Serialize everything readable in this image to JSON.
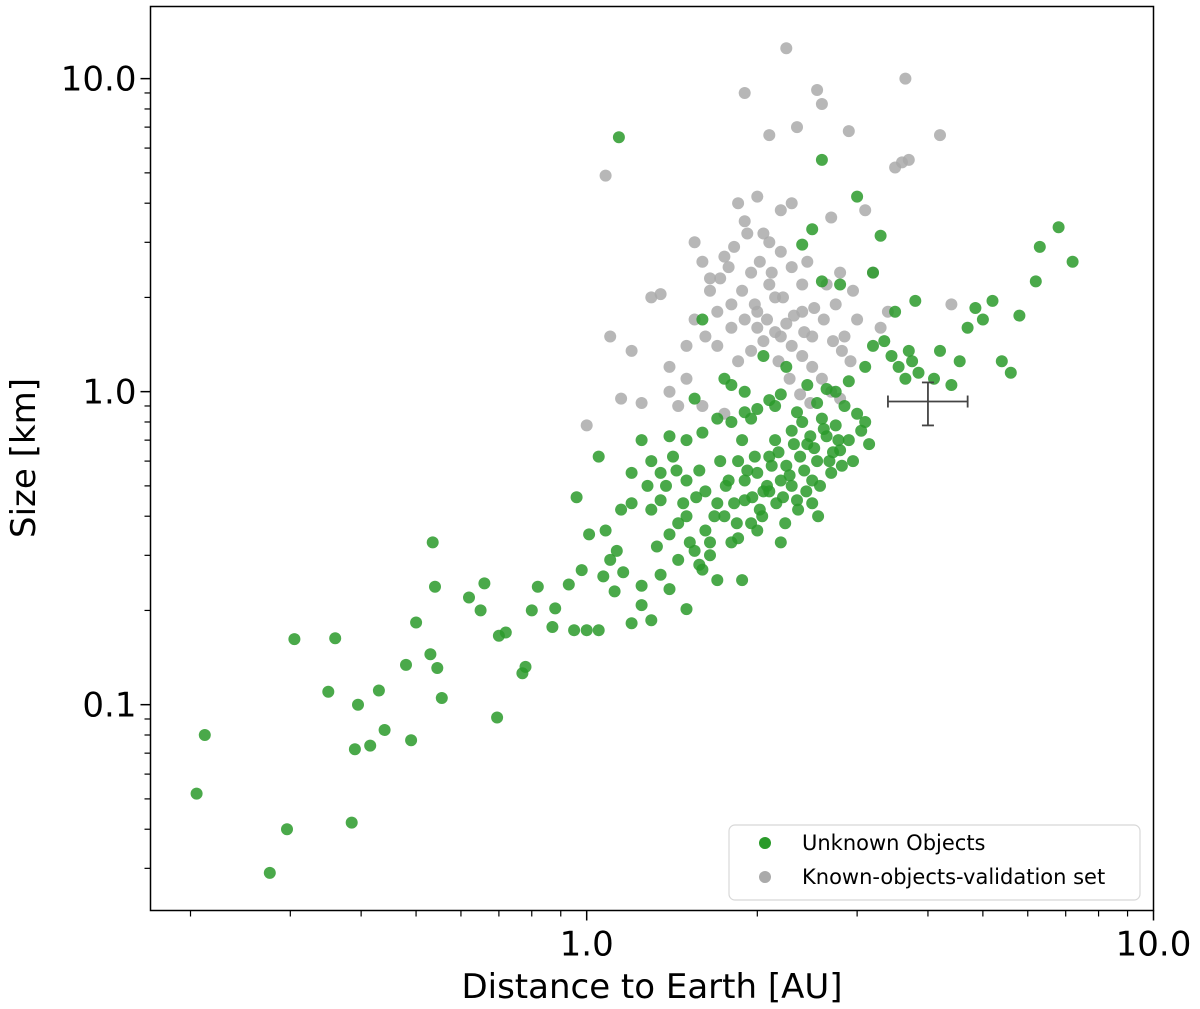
{
  "chart_data": {
    "type": "scatter",
    "xlabel": "Distance to Earth [AU]",
    "ylabel": "Size [km]",
    "xscale": "log",
    "yscale": "log",
    "xlim": [
      0.17,
      10.0
    ],
    "ylim": [
      0.022,
      17.0
    ],
    "xticks": [
      {
        "value": 1.0,
        "label": "1.0"
      },
      {
        "value": 10.0,
        "label": "10.0"
      }
    ],
    "yticks": [
      {
        "value": 0.1,
        "label": "0.1"
      },
      {
        "value": 1.0,
        "label": "1.0"
      },
      {
        "value": 10.0,
        "label": "10.0"
      }
    ],
    "grid": false,
    "legend_position": "bottom-right",
    "series": [
      {
        "name": "Unknown Objects",
        "color": "#2a9a2a",
        "points": [
          [
            0.205,
            0.052
          ],
          [
            0.212,
            0.08
          ],
          [
            0.276,
            0.029
          ],
          [
            0.296,
            0.04
          ],
          [
            0.305,
            0.162
          ],
          [
            0.35,
            0.11
          ],
          [
            0.36,
            0.163
          ],
          [
            0.385,
            0.042
          ],
          [
            0.39,
            0.072
          ],
          [
            0.395,
            0.1
          ],
          [
            0.415,
            0.074
          ],
          [
            0.43,
            0.111
          ],
          [
            0.44,
            0.083
          ],
          [
            0.48,
            0.134
          ],
          [
            0.49,
            0.077
          ],
          [
            0.5,
            0.183
          ],
          [
            0.53,
            0.145
          ],
          [
            0.535,
            0.33
          ],
          [
            0.54,
            0.238
          ],
          [
            0.545,
            0.131
          ],
          [
            0.555,
            0.105
          ],
          [
            0.62,
            0.22
          ],
          [
            0.65,
            0.2
          ],
          [
            0.66,
            0.244
          ],
          [
            0.695,
            0.091
          ],
          [
            0.7,
            0.166
          ],
          [
            0.72,
            0.17
          ],
          [
            0.77,
            0.126
          ],
          [
            0.78,
            0.132
          ],
          [
            0.8,
            0.2
          ],
          [
            0.82,
            0.238
          ],
          [
            0.87,
            0.177
          ],
          [
            0.88,
            0.203
          ],
          [
            0.93,
            0.242
          ],
          [
            0.95,
            0.173
          ],
          [
            0.96,
            0.46
          ],
          [
            0.98,
            0.269
          ],
          [
            1.0,
            0.173
          ],
          [
            1.01,
            0.35
          ],
          [
            1.05,
            0.173
          ],
          [
            1.07,
            0.257
          ],
          [
            1.1,
            0.29
          ],
          [
            1.13,
            0.31
          ],
          [
            1.16,
            0.265
          ],
          [
            1.2,
            0.182
          ],
          [
            1.25,
            0.208
          ],
          [
            1.3,
            0.186
          ],
          [
            1.4,
            0.234
          ],
          [
            1.5,
            0.202
          ],
          [
            1.05,
            0.62
          ],
          [
            1.08,
            0.36
          ],
          [
            1.15,
            0.42
          ],
          [
            1.2,
            0.55
          ],
          [
            1.25,
            0.7
          ],
          [
            1.28,
            0.5
          ],
          [
            1.3,
            0.6
          ],
          [
            1.35,
            0.45
          ],
          [
            1.4,
            0.35
          ],
          [
            1.45,
            0.38
          ],
          [
            1.5,
            0.52
          ],
          [
            1.55,
            0.31
          ],
          [
            1.6,
            0.27
          ],
          [
            1.65,
            0.3
          ],
          [
            1.7,
            0.25
          ],
          [
            1.75,
            0.4
          ],
          [
            1.8,
            0.33
          ],
          [
            1.85,
            0.6
          ],
          [
            1.9,
            0.45
          ],
          [
            1.95,
            0.38
          ],
          [
            2.0,
            0.55
          ],
          [
            2.05,
            0.48
          ],
          [
            2.1,
            0.62
          ],
          [
            2.15,
            0.7
          ],
          [
            2.2,
            0.52
          ],
          [
            2.25,
            0.58
          ],
          [
            2.3,
            0.75
          ],
          [
            2.35,
            0.45
          ],
          [
            2.4,
            0.8
          ],
          [
            2.45,
            0.68
          ],
          [
            2.5,
            0.52
          ],
          [
            2.55,
            0.6
          ],
          [
            2.6,
            0.82
          ],
          [
            2.65,
            0.72
          ],
          [
            2.7,
            0.55
          ],
          [
            2.75,
            0.78
          ],
          [
            2.8,
            0.65
          ],
          [
            2.85,
            0.9
          ],
          [
            2.9,
            0.7
          ],
          [
            2.95,
            0.6
          ],
          [
            3.0,
            0.85
          ],
          [
            3.05,
            0.75
          ],
          [
            3.1,
            0.8
          ],
          [
            3.15,
            0.68
          ],
          [
            1.35,
            0.55
          ],
          [
            1.42,
            0.62
          ],
          [
            1.48,
            0.44
          ],
          [
            1.52,
            0.33
          ],
          [
            1.58,
            0.56
          ],
          [
            1.62,
            0.48
          ],
          [
            1.68,
            0.4
          ],
          [
            1.72,
            0.6
          ],
          [
            1.78,
            0.52
          ],
          [
            1.82,
            0.44
          ],
          [
            1.88,
            0.7
          ],
          [
            1.92,
            0.56
          ],
          [
            1.98,
            0.62
          ],
          [
            2.02,
            0.42
          ],
          [
            2.08,
            0.5
          ],
          [
            2.12,
            0.58
          ],
          [
            2.18,
            0.64
          ],
          [
            2.22,
            0.46
          ],
          [
            2.28,
            0.54
          ],
          [
            2.32,
            0.68
          ],
          [
            2.38,
            0.62
          ],
          [
            2.42,
            0.56
          ],
          [
            2.48,
            0.72
          ],
          [
            2.52,
            0.66
          ],
          [
            2.58,
            0.5
          ],
          [
            2.62,
            0.76
          ],
          [
            2.68,
            0.6
          ],
          [
            2.72,
            0.64
          ],
          [
            2.78,
            0.7
          ],
          [
            2.82,
            0.58
          ],
          [
            1.3,
            0.42
          ],
          [
            1.38,
            0.5
          ],
          [
            1.44,
            0.56
          ],
          [
            1.5,
            0.4
          ],
          [
            1.56,
            0.46
          ],
          [
            1.62,
            0.36
          ],
          [
            1.7,
            0.44
          ],
          [
            1.76,
            0.5
          ],
          [
            1.84,
            0.38
          ],
          [
            1.9,
            0.52
          ],
          [
            1.96,
            0.46
          ],
          [
            2.04,
            0.4
          ],
          [
            2.1,
            0.48
          ],
          [
            2.16,
            0.44
          ],
          [
            2.24,
            0.38
          ],
          [
            2.3,
            0.5
          ],
          [
            2.36,
            0.42
          ],
          [
            2.44,
            0.48
          ],
          [
            2.5,
            0.44
          ],
          [
            2.56,
            0.4
          ],
          [
            1.4,
            0.72
          ],
          [
            1.5,
            0.7
          ],
          [
            1.6,
            0.74
          ],
          [
            1.7,
            0.82
          ],
          [
            1.8,
            0.8
          ],
          [
            1.9,
            0.86
          ],
          [
            2.0,
            0.88
          ],
          [
            2.1,
            0.94
          ],
          [
            2.2,
            0.98
          ],
          [
            1.55,
            0.95
          ],
          [
            1.75,
            1.1
          ],
          [
            1.9,
            1.0
          ],
          [
            2.05,
            1.3
          ],
          [
            2.25,
            1.2
          ],
          [
            2.45,
            1.05
          ],
          [
            2.65,
            1.02
          ],
          [
            2.9,
            1.08
          ],
          [
            3.1,
            1.2
          ],
          [
            3.2,
            1.4
          ],
          [
            3.35,
            1.45
          ],
          [
            3.45,
            1.3
          ],
          [
            3.55,
            1.2
          ],
          [
            3.65,
            1.1
          ],
          [
            3.7,
            1.35
          ],
          [
            3.75,
            1.25
          ],
          [
            3.85,
            1.15
          ],
          [
            4.1,
            1.1
          ],
          [
            4.2,
            1.35
          ],
          [
            4.4,
            1.05
          ],
          [
            4.55,
            1.25
          ],
          [
            4.7,
            1.6
          ],
          [
            4.85,
            1.85
          ],
          [
            5.0,
            1.7
          ],
          [
            5.2,
            1.95
          ],
          [
            5.4,
            1.25
          ],
          [
            5.6,
            1.15
          ],
          [
            5.8,
            1.75
          ],
          [
            6.2,
            2.25
          ],
          [
            6.3,
            2.9
          ],
          [
            6.8,
            3.35
          ],
          [
            7.2,
            2.6
          ],
          [
            3.5,
            1.8
          ],
          [
            3.8,
            1.95
          ],
          [
            3.3,
            3.15
          ],
          [
            3.2,
            2.4
          ],
          [
            3.0,
            4.2
          ],
          [
            2.8,
            2.2
          ],
          [
            2.6,
            2.25
          ],
          [
            2.6,
            5.5
          ],
          [
            2.5,
            3.3
          ],
          [
            2.4,
            2.95
          ],
          [
            1.6,
            1.7
          ],
          [
            1.8,
            1.05
          ],
          [
            1.95,
            0.82
          ],
          [
            2.15,
            0.9
          ],
          [
            2.35,
            0.86
          ],
          [
            2.55,
            0.92
          ],
          [
            1.14,
            6.5
          ],
          [
            2.75,
            1.0
          ],
          [
            1.2,
            0.44
          ],
          [
            1.33,
            0.32
          ],
          [
            1.45,
            0.29
          ],
          [
            1.65,
            0.33
          ],
          [
            1.85,
            0.34
          ],
          [
            2.0,
            0.36
          ],
          [
            2.2,
            0.33
          ],
          [
            1.12,
            0.23
          ],
          [
            1.25,
            0.24
          ],
          [
            1.35,
            0.26
          ],
          [
            1.58,
            0.28
          ],
          [
            1.88,
            0.25
          ]
        ]
      },
      {
        "name": "Known-objects-validation set",
        "color": "#aaaaaa",
        "points": [
          [
            1.0,
            0.78
          ],
          [
            1.08,
            4.9
          ],
          [
            1.1,
            1.5
          ],
          [
            1.15,
            0.95
          ],
          [
            1.2,
            1.35
          ],
          [
            1.25,
            0.92
          ],
          [
            1.3,
            2.0
          ],
          [
            1.35,
            2.05
          ],
          [
            1.4,
            1.2
          ],
          [
            1.45,
            0.9
          ],
          [
            1.5,
            1.4
          ],
          [
            1.55,
            3.0
          ],
          [
            1.6,
            2.6
          ],
          [
            1.65,
            2.1
          ],
          [
            1.7,
            1.8
          ],
          [
            1.75,
            2.7
          ],
          [
            1.8,
            1.9
          ],
          [
            1.85,
            4.0
          ],
          [
            1.9,
            3.5
          ],
          [
            1.95,
            2.4
          ],
          [
            2.0,
            1.6
          ],
          [
            2.05,
            3.2
          ],
          [
            2.1,
            6.6
          ],
          [
            2.15,
            2.0
          ],
          [
            2.2,
            3.8
          ],
          [
            2.25,
            12.5
          ],
          [
            2.3,
            4.0
          ],
          [
            2.35,
            7.0
          ],
          [
            2.4,
            1.8
          ],
          [
            2.45,
            2.6
          ],
          [
            2.5,
            1.5
          ],
          [
            2.55,
            9.2
          ],
          [
            2.6,
            8.3
          ],
          [
            2.65,
            2.2
          ],
          [
            2.7,
            3.6
          ],
          [
            2.75,
            1.9
          ],
          [
            2.8,
            2.4
          ],
          [
            2.85,
            1.5
          ],
          [
            2.9,
            6.8
          ],
          [
            2.95,
            2.1
          ],
          [
            3.0,
            1.7
          ],
          [
            3.1,
            3.8
          ],
          [
            3.2,
            2.4
          ],
          [
            3.3,
            1.6
          ],
          [
            3.4,
            1.8
          ],
          [
            3.5,
            5.2
          ],
          [
            3.6,
            5.4
          ],
          [
            3.65,
            10.0
          ],
          [
            3.7,
            5.5
          ],
          [
            4.2,
            6.6
          ],
          [
            4.4,
            1.9
          ],
          [
            1.9,
            9.0
          ],
          [
            2.0,
            4.2
          ],
          [
            2.1,
            3.0
          ],
          [
            2.2,
            2.8
          ],
          [
            2.3,
            2.5
          ],
          [
            2.4,
            2.2
          ],
          [
            1.7,
            1.4
          ],
          [
            1.8,
            1.6
          ],
          [
            1.9,
            1.7
          ],
          [
            2.0,
            1.8
          ],
          [
            2.1,
            2.2
          ],
          [
            2.2,
            1.5
          ],
          [
            2.3,
            1.4
          ],
          [
            2.4,
            1.3
          ],
          [
            2.5,
            1.2
          ],
          [
            2.6,
            1.1
          ],
          [
            2.7,
            1.0
          ],
          [
            2.8,
            0.95
          ],
          [
            1.6,
            0.9
          ],
          [
            1.75,
            0.85
          ],
          [
            1.85,
            1.25
          ],
          [
            1.95,
            1.35
          ],
          [
            2.05,
            1.45
          ],
          [
            2.15,
            1.55
          ],
          [
            2.25,
            1.65
          ],
          [
            1.4,
            1.0
          ],
          [
            1.5,
            1.1
          ],
          [
            1.62,
            1.5
          ],
          [
            1.72,
            2.3
          ],
          [
            1.82,
            2.9
          ],
          [
            1.92,
            3.2
          ],
          [
            2.02,
            2.6
          ],
          [
            2.12,
            2.4
          ],
          [
            2.22,
            2.0
          ],
          [
            2.32,
            1.75
          ],
          [
            2.42,
            1.55
          ],
          [
            2.52,
            1.85
          ],
          [
            2.62,
            1.7
          ],
          [
            2.72,
            1.45
          ],
          [
            2.82,
            1.35
          ],
          [
            2.92,
            1.25
          ],
          [
            1.55,
            1.7
          ],
          [
            1.65,
            2.3
          ],
          [
            1.78,
            2.5
          ],
          [
            1.88,
            2.1
          ],
          [
            1.98,
            1.9
          ],
          [
            2.08,
            1.7
          ],
          [
            2.18,
            1.25
          ],
          [
            2.28,
            1.1
          ],
          [
            2.38,
            0.98
          ],
          [
            2.48,
            0.92
          ]
        ]
      }
    ],
    "errorbar": {
      "x": 4.0,
      "y": 0.93,
      "xerr": [
        3.4,
        4.7
      ],
      "yerr": [
        0.78,
        1.07
      ],
      "color": "#444444"
    }
  }
}
